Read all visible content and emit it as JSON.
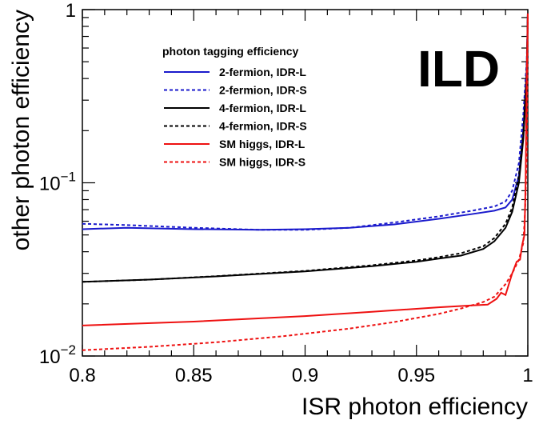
{
  "chart_data": {
    "type": "line",
    "xlabel": "ISR photon efficiency",
    "ylabel": "other photon efficiency",
    "xlim": [
      0.8,
      1.0
    ],
    "ylim": [
      0.01,
      1.0
    ],
    "yscale": "log",
    "x_ticks": [
      {
        "value": 0.8,
        "label": "0.8"
      },
      {
        "value": 0.85,
        "label": "0.85"
      },
      {
        "value": 0.9,
        "label": "0.9"
      },
      {
        "value": 0.95,
        "label": "0.95"
      },
      {
        "value": 1.0,
        "label": "1"
      }
    ],
    "y_ticks": [
      {
        "value": 0.01,
        "base": "10",
        "exp": "−2"
      },
      {
        "value": 0.1,
        "base": "10",
        "exp": "−1"
      },
      {
        "value": 1.0,
        "base": "1",
        "exp": ""
      }
    ],
    "grid": false,
    "legend": {
      "title": "photon tagging efficiency",
      "placement": "top-left"
    },
    "brand_label": "ILD",
    "series": [
      {
        "name": "2-fermion, IDR-L",
        "color": "#1a1acc",
        "dash": "solid",
        "points": [
          [
            0.8,
            0.054
          ],
          [
            0.82,
            0.055
          ],
          [
            0.85,
            0.054
          ],
          [
            0.88,
            0.0535
          ],
          [
            0.9,
            0.054
          ],
          [
            0.92,
            0.055
          ],
          [
            0.94,
            0.0575
          ],
          [
            0.96,
            0.062
          ],
          [
            0.975,
            0.066
          ],
          [
            0.985,
            0.069
          ],
          [
            0.99,
            0.072
          ],
          [
            0.993,
            0.08
          ],
          [
            0.996,
            0.11
          ],
          [
            0.998,
            0.2
          ],
          [
            0.9995,
            0.4
          ],
          [
            1.0,
            0.95
          ]
        ]
      },
      {
        "name": "2-fermion, IDR-S",
        "color": "#1a1acc",
        "dash": "dashed",
        "points": [
          [
            0.8,
            0.058
          ],
          [
            0.82,
            0.057
          ],
          [
            0.85,
            0.055
          ],
          [
            0.88,
            0.0535
          ],
          [
            0.9,
            0.0535
          ],
          [
            0.92,
            0.055
          ],
          [
            0.94,
            0.059
          ],
          [
            0.96,
            0.064
          ],
          [
            0.975,
            0.069
          ],
          [
            0.985,
            0.073
          ],
          [
            0.99,
            0.078
          ],
          [
            0.993,
            0.09
          ],
          [
            0.996,
            0.13
          ],
          [
            0.998,
            0.25
          ],
          [
            0.9995,
            0.5
          ],
          [
            1.0,
            0.95
          ]
        ]
      },
      {
        "name": "4-fermion, IDR-L",
        "color": "#000000",
        "dash": "solid",
        "points": [
          [
            0.8,
            0.0268
          ],
          [
            0.83,
            0.0276
          ],
          [
            0.86,
            0.0288
          ],
          [
            0.9,
            0.0308
          ],
          [
            0.93,
            0.033
          ],
          [
            0.95,
            0.035
          ],
          [
            0.96,
            0.0365
          ],
          [
            0.97,
            0.038
          ],
          [
            0.98,
            0.0415
          ],
          [
            0.985,
            0.046
          ],
          [
            0.99,
            0.055
          ],
          [
            0.993,
            0.068
          ],
          [
            0.996,
            0.1
          ],
          [
            0.998,
            0.18
          ],
          [
            0.9995,
            0.4
          ],
          [
            1.0,
            0.95
          ]
        ]
      },
      {
        "name": "4-fermion, IDR-S",
        "color": "#000000",
        "dash": "dashed",
        "points": [
          [
            0.8,
            0.0268
          ],
          [
            0.83,
            0.0276
          ],
          [
            0.86,
            0.0289
          ],
          [
            0.9,
            0.031
          ],
          [
            0.93,
            0.0334
          ],
          [
            0.95,
            0.0356
          ],
          [
            0.96,
            0.0372
          ],
          [
            0.97,
            0.0392
          ],
          [
            0.98,
            0.043
          ],
          [
            0.985,
            0.048
          ],
          [
            0.99,
            0.058
          ],
          [
            0.993,
            0.072
          ],
          [
            0.996,
            0.11
          ],
          [
            0.998,
            0.2
          ],
          [
            0.9995,
            0.45
          ],
          [
            1.0,
            0.95
          ]
        ]
      },
      {
        "name": "SM higgs, IDR-L",
        "color": "#ee1111",
        "dash": "solid",
        "points": [
          [
            0.8,
            0.015
          ],
          [
            0.85,
            0.0158
          ],
          [
            0.9,
            0.017
          ],
          [
            0.93,
            0.018
          ],
          [
            0.96,
            0.0191
          ],
          [
            0.975,
            0.0196
          ],
          [
            0.982,
            0.0198
          ],
          [
            0.986,
            0.0214
          ],
          [
            0.988,
            0.0232
          ],
          [
            0.99,
            0.0225
          ],
          [
            0.993,
            0.03
          ],
          [
            0.995,
            0.035
          ],
          [
            0.9965,
            0.036
          ],
          [
            0.9975,
            0.044
          ],
          [
            0.9985,
            0.05
          ],
          [
            0.999,
            0.1
          ],
          [
            0.9995,
            0.4
          ],
          [
            1.0,
            0.95
          ]
        ]
      },
      {
        "name": "SM higgs, IDR-S",
        "color": "#ee1111",
        "dash": "dashed",
        "points": [
          [
            0.8,
            0.0108
          ],
          [
            0.83,
            0.0113
          ],
          [
            0.86,
            0.012
          ],
          [
            0.89,
            0.013
          ],
          [
            0.92,
            0.0144
          ],
          [
            0.94,
            0.0157
          ],
          [
            0.96,
            0.0175
          ],
          [
            0.97,
            0.0188
          ],
          [
            0.98,
            0.0205
          ],
          [
            0.985,
            0.022
          ],
          [
            0.99,
            0.026
          ],
          [
            0.993,
            0.03
          ],
          [
            0.996,
            0.036
          ],
          [
            0.998,
            0.045
          ],
          [
            0.9988,
            0.07
          ],
          [
            0.9995,
            0.14
          ],
          [
            0.9998,
            0.4
          ],
          [
            1.0,
            0.95
          ]
        ]
      }
    ]
  }
}
